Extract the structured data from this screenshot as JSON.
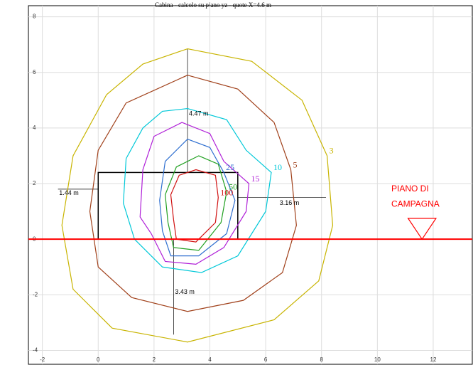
{
  "chart_data": {
    "type": "contour",
    "title": "Cabina - calcolo su piano yz - quote X=4.6 m",
    "xlim": [
      -2.5,
      13.4
    ],
    "ylim": [
      -4.5,
      8.4
    ],
    "xticks": [
      -2,
      0,
      2,
      4,
      6,
      8,
      10,
      12
    ],
    "yticks": [
      -4,
      -2,
      0,
      2,
      4,
      6,
      8
    ],
    "grid": true,
    "series": [
      {
        "name": "3",
        "color": "#c8b400",
        "x": [
          3.2,
          5.5,
          7.3,
          8.2,
          8.4,
          7.9,
          6.3,
          3.2,
          0.5,
          -0.9,
          -1.3,
          -0.9,
          0.3,
          1.6
        ],
        "y": [
          6.85,
          6.4,
          5.0,
          3.0,
          0.5,
          -1.5,
          -2.9,
          -3.7,
          -3.2,
          -1.8,
          0.5,
          3.0,
          5.2,
          6.3
        ]
      },
      {
        "name": "5",
        "color": "#a0401a",
        "x": [
          3.2,
          5.0,
          6.3,
          6.9,
          7.1,
          6.6,
          5.2,
          3.2,
          1.2,
          0.0,
          -0.3,
          0.0,
          1.0
        ],
        "y": [
          5.9,
          5.4,
          4.2,
          2.5,
          0.5,
          -1.2,
          -2.2,
          -2.6,
          -2.1,
          -1.0,
          1.0,
          3.2,
          4.9
        ]
      },
      {
        "name": "10",
        "color": "#00c8d8",
        "x": [
          3.2,
          4.6,
          5.3,
          6.2,
          6.0,
          5.0,
          3.7,
          2.3,
          1.3,
          0.9,
          1.0,
          1.6,
          2.3
        ],
        "y": [
          4.7,
          4.3,
          3.2,
          2.4,
          1.0,
          -0.6,
          -1.2,
          -1.0,
          0.0,
          1.3,
          2.9,
          4.0,
          4.6
        ]
      },
      {
        "name": "15",
        "color": "#b020d8",
        "x": [
          3.0,
          4.0,
          4.5,
          5.4,
          5.3,
          4.5,
          3.5,
          2.4,
          1.9,
          1.5,
          1.6,
          2.0
        ],
        "y": [
          4.2,
          3.8,
          2.8,
          2.0,
          1.0,
          -0.3,
          -0.9,
          -0.8,
          0.2,
          0.8,
          2.5,
          3.7
        ]
      },
      {
        "name": "25",
        "color": "#3070d0",
        "x": [
          3.2,
          4.0,
          4.5,
          4.9,
          4.6,
          3.6,
          2.6,
          2.3,
          2.2,
          2.4
        ],
        "y": [
          3.6,
          3.3,
          2.4,
          1.4,
          0.2,
          -0.6,
          -0.6,
          0.3,
          1.4,
          2.8
        ]
      },
      {
        "name": "50",
        "color": "#20a020",
        "x": [
          3.6,
          4.3,
          4.6,
          4.4,
          3.6,
          2.7,
          2.5,
          2.4,
          2.8
        ],
        "y": [
          3.0,
          2.7,
          1.7,
          0.6,
          -0.4,
          -0.3,
          0.6,
          1.6,
          2.6
        ]
      },
      {
        "name": "100",
        "color": "#d01010",
        "x": [
          3.5,
          4.2,
          4.3,
          4.2,
          3.5,
          2.8,
          2.7,
          2.6,
          2.9
        ],
        "y": [
          2.5,
          2.3,
          1.5,
          0.6,
          -0.1,
          0.0,
          0.7,
          1.6,
          2.3
        ]
      }
    ],
    "annotations": [
      "4.47 m",
      "1.44 m",
      "3.16 m",
      "3.43 m",
      "PIANO DI",
      "CAMPAGNA"
    ]
  }
}
